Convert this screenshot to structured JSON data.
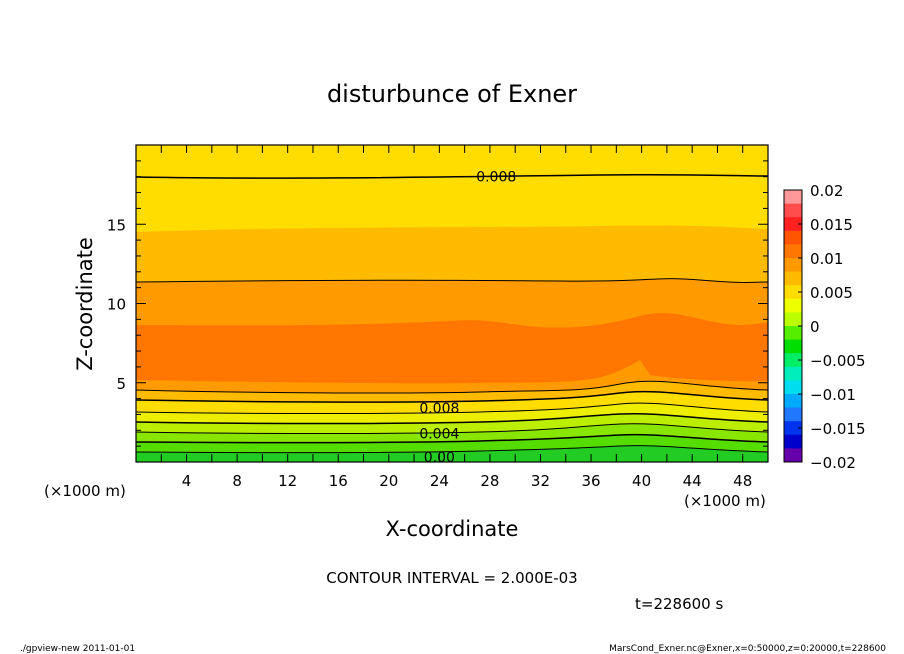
{
  "chart_data": {
    "type": "heatmap",
    "title": "disturbunce of Exner",
    "xlabel": "X-coordinate",
    "ylabel": "Z-coordinate",
    "x_unit_label": "(×1000 m)",
    "y_unit_label": "(×1000 m)",
    "xlim": [
      0,
      50
    ],
    "ylim": [
      0,
      20
    ],
    "x_ticks": [
      "4",
      "8",
      "12",
      "16",
      "20",
      "24",
      "28",
      "32",
      "36",
      "40",
      "44",
      "48"
    ],
    "y_ticks": [
      "5",
      "10",
      "15"
    ],
    "contour_interval_text": "CONTOUR INTERVAL = 2.000E-03",
    "time_text": "t=228600 s",
    "footer_left": "./gpview-new   2011-01-01",
    "footer_right": "MarsCond_Exner.nc@Exner,x=0:50000,z=0:20000,t=228600",
    "colorbar": {
      "range": [
        -0.02,
        0.02
      ],
      "labels": [
        "0.02",
        "0.015",
        "0.01",
        "0.005",
        "0",
        "−0.005",
        "−0.01",
        "−0.015",
        "−0.02"
      ]
    },
    "contour_labels": [
      {
        "text": "0.008",
        "x": 28.5,
        "z": 18.0
      },
      {
        "text": "0.008",
        "x": 24.0,
        "z": 3.4
      },
      {
        "text": "0.004",
        "x": 24.0,
        "z": 1.8
      },
      {
        "text": "0.00",
        "x": 24.0,
        "z": 0.3
      }
    ],
    "profile": [
      {
        "z": 0.0,
        "value": -0.002
      },
      {
        "z": 1.0,
        "value": 0.002
      },
      {
        "z": 2.0,
        "value": 0.004
      },
      {
        "z": 3.0,
        "value": 0.006
      },
      {
        "z": 4.0,
        "value": 0.008
      },
      {
        "z": 5.0,
        "value": 0.01
      },
      {
        "z": 8.0,
        "value": 0.011
      },
      {
        "z": 11.5,
        "value": 0.01
      },
      {
        "z": 14.5,
        "value": 0.009
      },
      {
        "z": 18.0,
        "value": 0.008
      },
      {
        "z": 20.0,
        "value": 0.007
      }
    ]
  }
}
